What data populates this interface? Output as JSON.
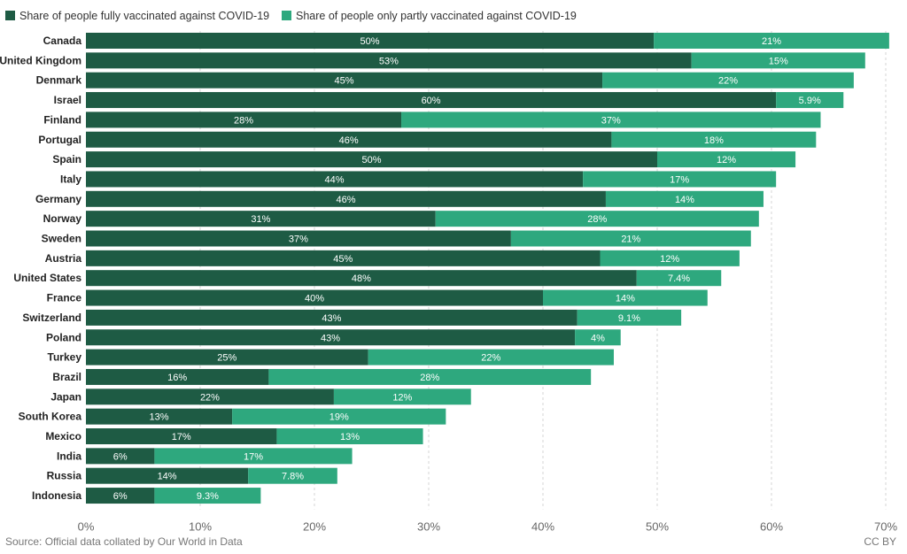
{
  "colors": {
    "fully": "#1e5b44",
    "partly": "#2ea87e"
  },
  "legend": {
    "fully_label": "Share of people fully vaccinated against COVID-19",
    "partly_label": "Share of people only partly vaccinated against COVID-19"
  },
  "footer": {
    "source": "Source: Official data collated by Our World in Data",
    "license": "CC BY"
  },
  "chart_data": {
    "type": "bar",
    "orientation": "horizontal",
    "stacked": true,
    "categories": [
      "Canada",
      "United Kingdom",
      "Denmark",
      "Israel",
      "Finland",
      "Portugal",
      "Spain",
      "Italy",
      "Germany",
      "Norway",
      "Sweden",
      "Austria",
      "United States",
      "France",
      "Switzerland",
      "Poland",
      "Turkey",
      "Brazil",
      "Japan",
      "South Korea",
      "Mexico",
      "India",
      "Russia",
      "Indonesia"
    ],
    "series": [
      {
        "name": "Share of people fully vaccinated against COVID-19",
        "values": [
          49.7,
          53,
          45.2,
          60.4,
          27.6,
          46,
          50,
          43.5,
          45.5,
          30.6,
          37.2,
          45,
          48.2,
          40,
          43,
          42.8,
          24.7,
          16,
          21.7,
          12.8,
          16.7,
          6,
          14.2,
          6
        ],
        "labels": [
          "50%",
          "53%",
          "45%",
          "60%",
          "28%",
          "46%",
          "50%",
          "44%",
          "46%",
          "31%",
          "37%",
          "45%",
          "48%",
          "40%",
          "43%",
          "43%",
          "25%",
          "16%",
          "22%",
          "13%",
          "17%",
          "6%",
          "14%",
          "6%"
        ]
      },
      {
        "name": "Share of people only partly vaccinated against COVID-19",
        "values": [
          20.6,
          15.2,
          22,
          5.9,
          36.7,
          17.9,
          12.1,
          16.9,
          13.8,
          28.3,
          21,
          12.2,
          7.4,
          14.4,
          9.1,
          4,
          21.5,
          28.2,
          12,
          18.7,
          12.8,
          17.3,
          7.8,
          9.3
        ],
        "labels": [
          "21%",
          "15%",
          "22%",
          "5.9%",
          "37%",
          "18%",
          "12%",
          "17%",
          "14%",
          "28%",
          "21%",
          "12%",
          "7.4%",
          "14%",
          "9.1%",
          "4%",
          "22%",
          "28%",
          "12%",
          "19%",
          "13%",
          "17%",
          "7.8%",
          "9.3%"
        ]
      }
    ],
    "xlim": [
      0,
      70
    ],
    "xticks": [
      "0%",
      "10%",
      "20%",
      "30%",
      "40%",
      "50%",
      "60%",
      "70%"
    ],
    "xtick_values": [
      0,
      10,
      20,
      30,
      40,
      50,
      60,
      70
    ],
    "grid": "vertical dashed",
    "legend_position": "top-left",
    "title": "",
    "xlabel": "",
    "ylabel": ""
  }
}
